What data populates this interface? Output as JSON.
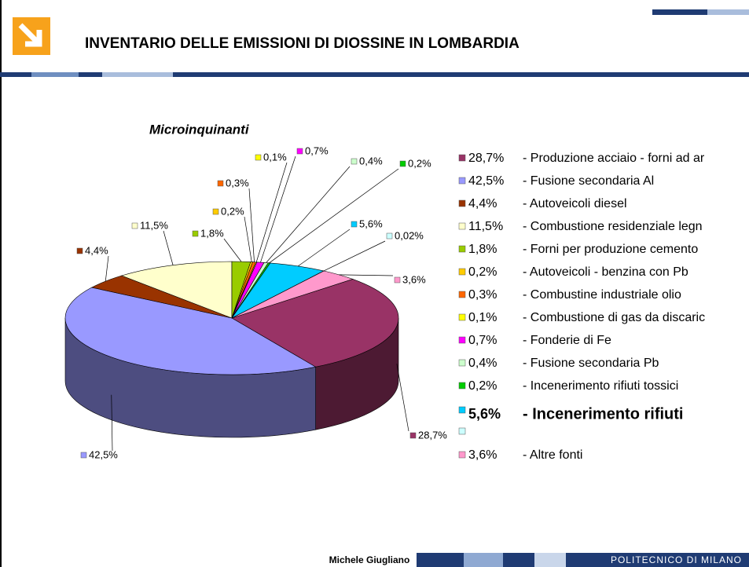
{
  "header": {
    "title": "INVENTARIO DELLE EMISSIONI DI DIOSSINE IN LOMBARDIA"
  },
  "footer": {
    "author": "Michele Giugliano",
    "institution": "POLITECNICO DI MILANO"
  },
  "chart_data": {
    "type": "pie",
    "title": "Microinquinanti",
    "categories": [
      "- Produzione acciaio - forni ad ar",
      "- Fusione secondaria Al",
      "- Autoveicoli diesel",
      "- Combustione residenziale legn",
      "- Forni per produzione cemento",
      "- Autoveicoli - benzina con Pb",
      "- Combustine industriale olio",
      "- Combustione di gas da discaric",
      "- Fonderie di Fe",
      "- Fusione secondaria Pb",
      "- Incenerimento rifiuti tossici",
      "- Incenerimento rifiuti",
      null,
      "- Altre fonti"
    ],
    "values": [
      28.7,
      42.5,
      4.4,
      11.5,
      1.8,
      0.2,
      0.3,
      0.1,
      0.7,
      0.4,
      0.2,
      5.6,
      0.02,
      3.6
    ],
    "value_labels": [
      "28,7%",
      "42,5%",
      "4,4%",
      "11,5%",
      "1,8%",
      "0,2%",
      "0,3%",
      "0,1%",
      "0,7%",
      "0,4%",
      "0,2%",
      "5,6%",
      "0,02%",
      "3,6%"
    ],
    "colors": [
      "#993366",
      "#9999ff",
      "#993300",
      "#ffffcc",
      "#99cc00",
      "#ffcc00",
      "#ff6600",
      "#ffff00",
      "#ff00ff",
      "#ccffcc",
      "#00cc00",
      "#00ccff",
      "#ccffff",
      "#ff99cc"
    ]
  }
}
